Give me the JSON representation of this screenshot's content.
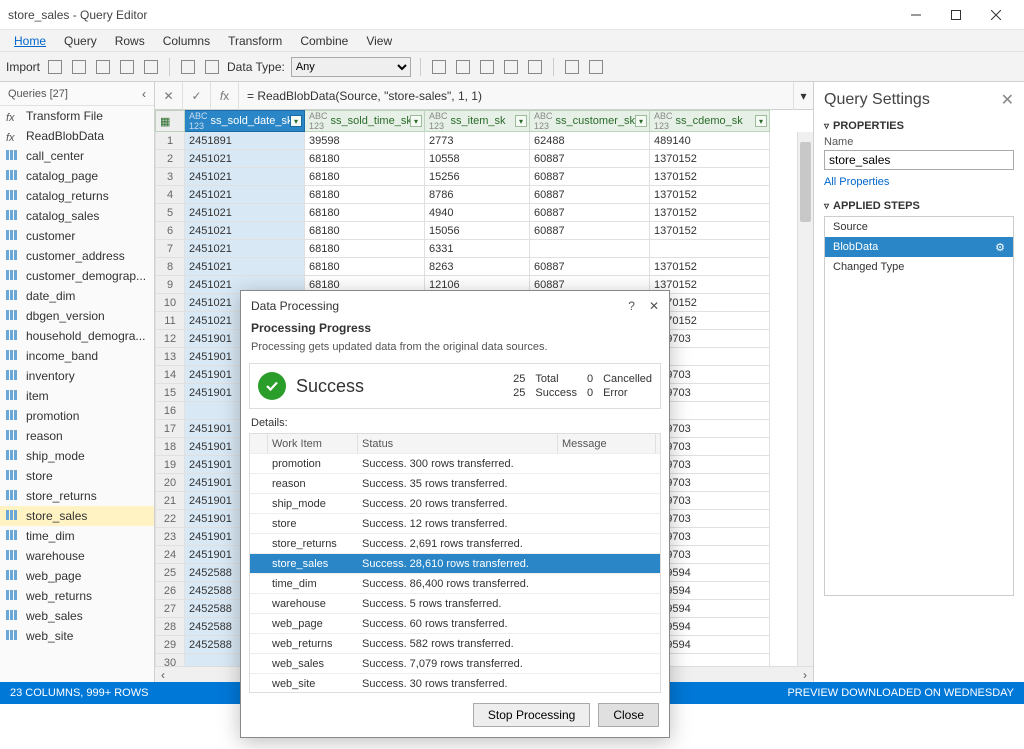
{
  "window": {
    "title": "store_sales - Query Editor"
  },
  "menubar": [
    "Home",
    "Query",
    "Rows",
    "Columns",
    "Transform",
    "Combine",
    "View"
  ],
  "toolbar": {
    "import_label": "Import",
    "datatype_label": "Data Type:",
    "datatype_value": "Any"
  },
  "queries_panel": {
    "header": "Queries [27]",
    "items": [
      {
        "name": "Transform File",
        "type": "fx"
      },
      {
        "name": "ReadBlobData",
        "type": "fx"
      },
      {
        "name": "call_center",
        "type": "tbl"
      },
      {
        "name": "catalog_page",
        "type": "tbl"
      },
      {
        "name": "catalog_returns",
        "type": "tbl"
      },
      {
        "name": "catalog_sales",
        "type": "tbl"
      },
      {
        "name": "customer",
        "type": "tbl"
      },
      {
        "name": "customer_address",
        "type": "tbl"
      },
      {
        "name": "customer_demograp...",
        "type": "tbl"
      },
      {
        "name": "date_dim",
        "type": "tbl"
      },
      {
        "name": "dbgen_version",
        "type": "tbl"
      },
      {
        "name": "household_demogra...",
        "type": "tbl"
      },
      {
        "name": "income_band",
        "type": "tbl"
      },
      {
        "name": "inventory",
        "type": "tbl"
      },
      {
        "name": "item",
        "type": "tbl"
      },
      {
        "name": "promotion",
        "type": "tbl"
      },
      {
        "name": "reason",
        "type": "tbl"
      },
      {
        "name": "ship_mode",
        "type": "tbl"
      },
      {
        "name": "store",
        "type": "tbl"
      },
      {
        "name": "store_returns",
        "type": "tbl"
      },
      {
        "name": "store_sales",
        "type": "tbl",
        "selected": true
      },
      {
        "name": "time_dim",
        "type": "tbl"
      },
      {
        "name": "warehouse",
        "type": "tbl"
      },
      {
        "name": "web_page",
        "type": "tbl"
      },
      {
        "name": "web_returns",
        "type": "tbl"
      },
      {
        "name": "web_sales",
        "type": "tbl"
      },
      {
        "name": "web_site",
        "type": "tbl"
      }
    ]
  },
  "formula": "= ReadBlobData(Source, \"store-sales\", 1, 1)",
  "grid": {
    "columns": [
      "ss_sold_date_sk",
      "ss_sold_time_sk",
      "ss_item_sk",
      "ss_customer_sk",
      "ss_cdemo_sk"
    ],
    "selected_col": 0,
    "rows": [
      [
        "2451891",
        "39598",
        "2773",
        "62488",
        "489140"
      ],
      [
        "2451021",
        "68180",
        "10558",
        "60887",
        "1370152"
      ],
      [
        "2451021",
        "68180",
        "15256",
        "60887",
        "1370152"
      ],
      [
        "2451021",
        "68180",
        "8786",
        "60887",
        "1370152"
      ],
      [
        "2451021",
        "68180",
        "4940",
        "60887",
        "1370152"
      ],
      [
        "2451021",
        "68180",
        "15056",
        "60887",
        "1370152"
      ],
      [
        "2451021",
        "68180",
        "6331",
        "",
        ""
      ],
      [
        "2451021",
        "68180",
        "8263",
        "60887",
        "1370152"
      ],
      [
        "2451021",
        "68180",
        "12106",
        "60887",
        "1370152"
      ],
      [
        "2451021",
        "",
        "",
        "",
        "1370152"
      ],
      [
        "2451021",
        "",
        "",
        "",
        "1370152"
      ],
      [
        "2451901",
        "",
        "",
        "",
        "439703"
      ],
      [
        "2451901",
        "",
        "",
        "",
        ""
      ],
      [
        "2451901",
        "",
        "",
        "",
        "439703"
      ],
      [
        "2451901",
        "",
        "",
        "",
        "439703"
      ],
      [
        "",
        "",
        "",
        "",
        ""
      ],
      [
        "2451901",
        "",
        "",
        "",
        "439703"
      ],
      [
        "2451901",
        "",
        "",
        "",
        "439703"
      ],
      [
        "2451901",
        "",
        "",
        "",
        "439703"
      ],
      [
        "2451901",
        "",
        "",
        "",
        "439703"
      ],
      [
        "2451901",
        "",
        "",
        "",
        "439703"
      ],
      [
        "2451901",
        "",
        "",
        "",
        "439703"
      ],
      [
        "2451901",
        "",
        "",
        "",
        "439703"
      ],
      [
        "2451901",
        "",
        "",
        "",
        "439703"
      ],
      [
        "2452588",
        "",
        "",
        "",
        "259594"
      ],
      [
        "2452588",
        "",
        "",
        "",
        "259594"
      ],
      [
        "2452588",
        "",
        "",
        "",
        "259594"
      ],
      [
        "2452588",
        "",
        "",
        "",
        "259594"
      ],
      [
        "2452588",
        "",
        "",
        "",
        "259594"
      ],
      [
        "",
        "",
        "",
        "",
        ""
      ]
    ]
  },
  "settings": {
    "title": "Query Settings",
    "properties_label": "PROPERTIES",
    "name_label": "Name",
    "name_value": "store_sales",
    "all_props": "All Properties",
    "steps_label": "APPLIED STEPS",
    "steps": [
      {
        "name": "Source"
      },
      {
        "name": "BlobData",
        "selected": true,
        "gear": true
      },
      {
        "name": "Changed Type"
      }
    ]
  },
  "statusbar": {
    "left": "23 COLUMNS, 999+ ROWS",
    "right": "PREVIEW DOWNLOADED ON WEDNESDAY"
  },
  "dialog": {
    "title": "Data Processing",
    "subtitle": "Processing Progress",
    "message": "Processing gets updated data from the original data sources.",
    "result_title": "Success",
    "stats": {
      "total": "25",
      "success": "25",
      "cancelled": "0",
      "error": "0"
    },
    "stats_labels": {
      "total": "Total",
      "success": "Success",
      "cancelled": "Cancelled",
      "error": "Error"
    },
    "details_label": "Details:",
    "columns": [
      "",
      "Work Item",
      "Status",
      "Message"
    ],
    "rows": [
      {
        "name": "promotion",
        "status": "Success. 300 rows transferred."
      },
      {
        "name": "reason",
        "status": "Success. 35 rows transferred."
      },
      {
        "name": "ship_mode",
        "status": "Success. 20 rows transferred."
      },
      {
        "name": "store",
        "status": "Success. 12 rows transferred."
      },
      {
        "name": "store_returns",
        "status": "Success. 2,691 rows transferred."
      },
      {
        "name": "store_sales",
        "status": "Success. 28,610 rows transferred.",
        "selected": true
      },
      {
        "name": "time_dim",
        "status": "Success. 86,400 rows transferred."
      },
      {
        "name": "warehouse",
        "status": "Success. 5 rows transferred."
      },
      {
        "name": "web_page",
        "status": "Success. 60 rows transferred."
      },
      {
        "name": "web_returns",
        "status": "Success. 582 rows transferred."
      },
      {
        "name": "web_sales",
        "status": "Success. 7,079 rows transferred."
      },
      {
        "name": "web_site",
        "status": "Success. 30 rows transferred."
      }
    ],
    "btn_stop": "Stop Processing",
    "btn_close": "Close"
  }
}
